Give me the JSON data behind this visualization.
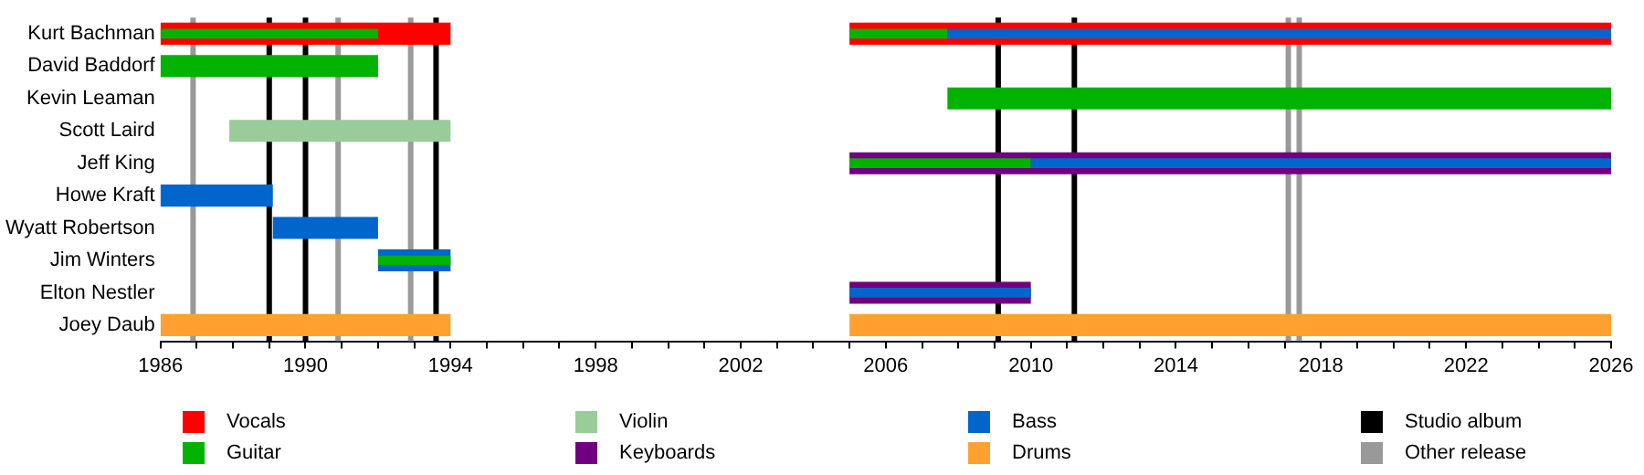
{
  "chart_data": {
    "type": "bar",
    "orientation": "horizontal",
    "categories": [
      "Kurt Bachman",
      "David Baddorf",
      "Kevin Leaman",
      "Scott Laird",
      "Jeff King",
      "Howe Kraft",
      "Wyatt Robertson",
      "Jim Winters",
      "Elton Nestler",
      "Joey Daub"
    ],
    "series": [
      {
        "name": "Vocals",
        "color": "#ff0000",
        "base": [
          1986,
          null,
          null,
          null,
          null,
          null,
          null,
          null,
          null,
          null
        ],
        "values": [
          8,
          null,
          null,
          null,
          null,
          null,
          null,
          null,
          null,
          null
        ]
      },
      {
        "color": "#ff0000",
        "base": [
          2005,
          null,
          null,
          null,
          null,
          null,
          null,
          null,
          null,
          null
        ],
        "values": [
          21,
          null,
          null,
          null,
          null,
          null,
          null,
          null,
          null,
          null
        ]
      },
      {
        "name": "Guitar",
        "color": "#00b300",
        "base": [
          1986,
          1986,
          2007.7,
          null,
          2005,
          null,
          null,
          1992,
          null,
          null
        ],
        "values": [
          6,
          6,
          18.3,
          null,
          5,
          null,
          null,
          2,
          null,
          null
        ]
      },
      {
        "name": "Violin",
        "color": "#99cc99",
        "base": [
          null,
          null,
          null,
          1987.9,
          null,
          null,
          null,
          null,
          null,
          null
        ],
        "values": [
          null,
          null,
          null,
          6.1,
          null,
          null,
          null,
          null,
          null,
          null
        ]
      },
      {
        "name": "Keyboards",
        "color": "#700080",
        "base": [
          null,
          null,
          null,
          null,
          2005,
          null,
          null,
          null,
          null,
          null
        ],
        "values": [
          null,
          null,
          null,
          null,
          21,
          null,
          null,
          null,
          null,
          null
        ]
      },
      {
        "name": "Bass",
        "color": "#0066cc",
        "base": [
          null,
          null,
          null,
          null,
          null,
          1986,
          1989.1,
          1992,
          2005,
          null
        ],
        "values": [
          null,
          null,
          null,
          null,
          null,
          3.1,
          2.9,
          2,
          5,
          null
        ]
      },
      {
        "name": "Drums",
        "color": "#ffa030",
        "base": [
          null,
          null,
          null,
          null,
          null,
          null,
          null,
          null,
          null,
          1986
        ],
        "values": [
          null,
          null,
          null,
          null,
          null,
          null,
          null,
          null,
          null,
          8
        ]
      },
      {
        "color": "#ffa030",
        "base": [
          null,
          null,
          null,
          null,
          null,
          null,
          null,
          null,
          null,
          2005
        ],
        "values": [
          null,
          null,
          null,
          null,
          null,
          null,
          null,
          null,
          null,
          21
        ]
      },
      {
        "color": "#00b300",
        "base": [
          2005,
          null,
          null,
          null,
          null,
          null,
          null,
          null,
          null,
          null
        ],
        "values": [
          2.7,
          null,
          null,
          null,
          null,
          null,
          null,
          null,
          null,
          null
        ]
      },
      {
        "color": "#0066cc",
        "base": [
          2007.7,
          null,
          null,
          null,
          2010,
          null,
          null,
          null,
          null,
          null
        ],
        "values": [
          18.3,
          null,
          null,
          null,
          16,
          null,
          null,
          null,
          null,
          null
        ]
      },
      {
        "color": "#700080",
        "base": [
          null,
          null,
          null,
          null,
          null,
          null,
          null,
          null,
          2005,
          null
        ],
        "values": [
          null,
          null,
          null,
          null,
          null,
          null,
          null,
          null,
          5,
          null
        ]
      }
    ],
    "ref_lines": [
      {
        "axis": "x",
        "value": 1989,
        "label": "Studio album",
        "color": "#000000"
      },
      {
        "axis": "x",
        "value": 1990,
        "color": "#000000"
      },
      {
        "axis": "x",
        "value": 1993.6,
        "color": "#000000"
      },
      {
        "axis": "x",
        "value": 2009.1,
        "color": "#000000"
      },
      {
        "axis": "x",
        "value": 2011.2,
        "color": "#000000"
      },
      {
        "axis": "x",
        "value": 1986.9,
        "label": "Other release",
        "color": "#999999"
      },
      {
        "axis": "x",
        "value": 1990.9,
        "color": "#999999"
      },
      {
        "axis": "x",
        "value": 1992.9,
        "color": "#999999"
      },
      {
        "axis": "x",
        "value": 2017.1,
        "color": "#999999"
      },
      {
        "axis": "x",
        "value": 2017.4,
        "color": "#999999"
      }
    ],
    "xlim": [
      1986,
      2026
    ],
    "xticks": [
      1986,
      {
        "value": 1987,
        "label": null
      },
      {
        "value": 1988,
        "label": null
      },
      {
        "value": 1989,
        "label": null
      },
      1990,
      {
        "value": 1991,
        "label": null
      },
      {
        "value": 1992,
        "label": null
      },
      {
        "value": 1993,
        "label": null
      },
      1994,
      {
        "value": 1995,
        "label": null
      },
      {
        "value": 1996,
        "label": null
      },
      {
        "value": 1997,
        "label": null
      },
      1998,
      {
        "value": 1999,
        "label": null
      },
      {
        "value": 2000,
        "label": null
      },
      {
        "value": 2001,
        "label": null
      },
      2002,
      {
        "value": 2003,
        "label": null
      },
      {
        "value": 2004,
        "label": null
      },
      {
        "value": 2005,
        "label": null
      },
      2006,
      {
        "value": 2007,
        "label": null
      },
      {
        "value": 2008,
        "label": null
      },
      {
        "value": 2009,
        "label": null
      },
      2010,
      {
        "value": 2011,
        "label": null
      },
      {
        "value": 2012,
        "label": null
      },
      {
        "value": 2013,
        "label": null
      },
      2014,
      {
        "value": 2015,
        "label": null
      },
      {
        "value": 2016,
        "label": null
      },
      {
        "value": 2017,
        "label": null
      },
      2018,
      {
        "value": 2019,
        "label": null
      },
      {
        "value": 2020,
        "label": null
      },
      {
        "value": 2021,
        "label": null
      },
      2022,
      {
        "value": 2023,
        "label": null
      },
      {
        "value": 2024,
        "label": null
      },
      {
        "value": 2025,
        "label": null
      },
      2026
    ],
    "grid": false,
    "legend": "bottom"
  }
}
